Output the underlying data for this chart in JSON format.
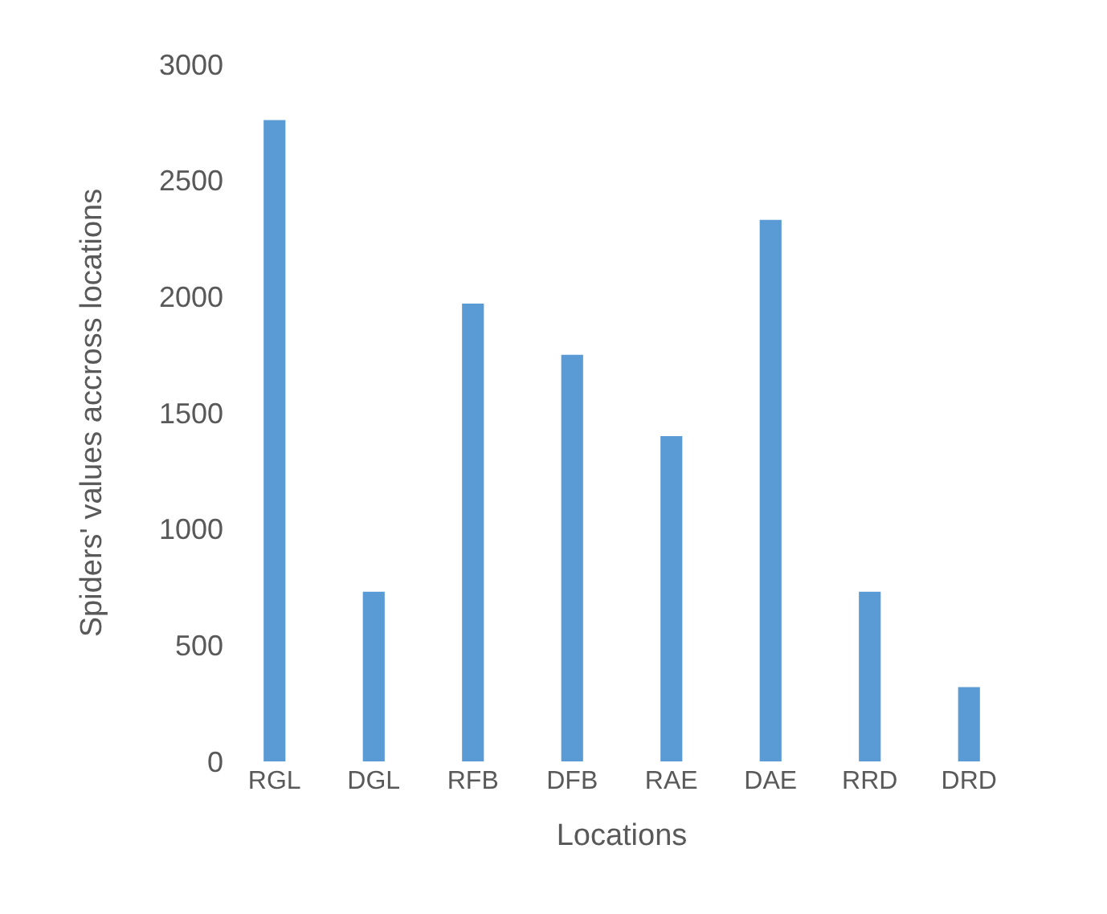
{
  "chart_data": {
    "type": "bar",
    "categories": [
      "RGL",
      "DGL",
      "RFB",
      "DFB",
      "RAE",
      "DAE",
      "RRD",
      "DRD"
    ],
    "values": [
      2760,
      730,
      1970,
      1750,
      1400,
      2330,
      730,
      320
    ],
    "color": "#5b9bd5",
    "xlabel": "Locations",
    "ylabel": "Spiders' values accross locations",
    "ylim": [
      0,
      3000
    ],
    "yticks": [
      0,
      500,
      1000,
      1500,
      2000,
      2500,
      3000
    ],
    "grid": false
  }
}
